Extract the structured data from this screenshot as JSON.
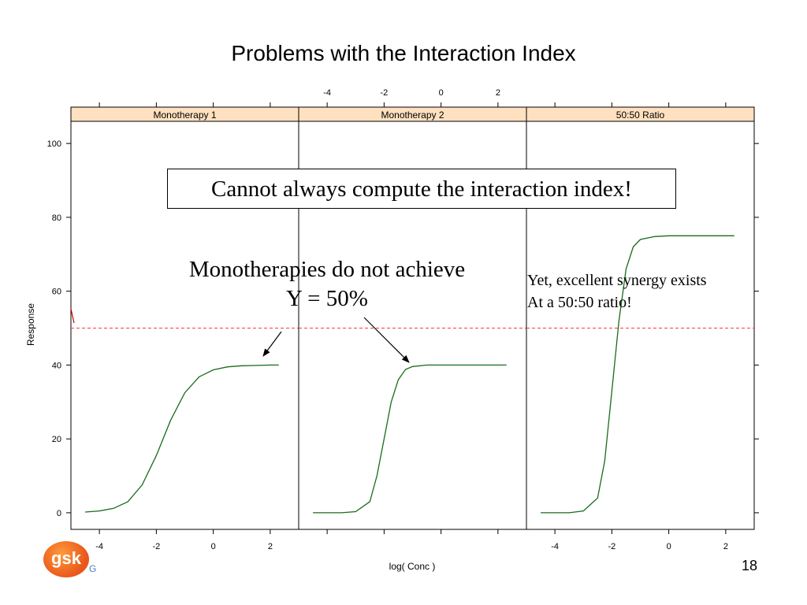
{
  "slide": {
    "title": "Problems with the Interaction Index",
    "page_number": "18",
    "logo_text": "gsk",
    "logo_mark": "G",
    "callout": "Cannot always compute the interaction index!",
    "note_mono_line1": "Monotherapies do not achieve",
    "note_mono_line2": "Y = 50%",
    "note_synergy_line1": "Yet, excellent synergy exists",
    "note_synergy_line2": "At a 50:50 ratio!"
  },
  "chart_data": {
    "type": "line",
    "xlabel": "log( Conc )",
    "ylabel": "Response",
    "xlim": [
      -5,
      3
    ],
    "ylim": [
      -4.5,
      106
    ],
    "x_ticks": [
      -4,
      -2,
      0,
      2
    ],
    "y_ticks": [
      0,
      20,
      40,
      60,
      80,
      100
    ],
    "reference_line": {
      "y": 50,
      "style": "dashed",
      "color": "#ff3b3b"
    },
    "line_color": "#1a6b1a",
    "strip_color": "#ffe0c0",
    "panels": [
      {
        "strip_label": "Monotherapy 1",
        "x": [
          -4.5,
          -4.0,
          -3.5,
          -3.0,
          -2.5,
          -2.0,
          -1.5,
          -1.0,
          -0.5,
          0.0,
          0.5,
          1.0,
          1.5,
          2.0,
          2.3
        ],
        "y": [
          0.2,
          0.5,
          1.2,
          3.0,
          7.5,
          15.5,
          25.0,
          32.5,
          36.8,
          38.7,
          39.5,
          39.8,
          39.9,
          40.0,
          40.0
        ]
      },
      {
        "strip_label": "Monotherapy 2",
        "x": [
          -4.5,
          -3.5,
          -3.0,
          -2.5,
          -2.25,
          -2.0,
          -1.75,
          -1.5,
          -1.25,
          -1.0,
          -0.5,
          0.0,
          1.0,
          2.3
        ],
        "y": [
          0.0,
          0.0,
          0.3,
          3.0,
          10.0,
          20.0,
          30.0,
          36.0,
          38.8,
          39.6,
          40.0,
          40.0,
          40.0,
          40.0
        ]
      },
      {
        "strip_label": "50:50 Ratio",
        "x": [
          -4.5,
          -3.5,
          -3.0,
          -2.5,
          -2.25,
          -2.0,
          -1.75,
          -1.5,
          -1.25,
          -1.0,
          -0.5,
          0.0,
          1.0,
          2.3
        ],
        "y": [
          0.0,
          0.0,
          0.5,
          4.0,
          14.0,
          33.0,
          52.0,
          66.0,
          72.0,
          74.0,
          74.8,
          75.0,
          75.0,
          75.0
        ]
      }
    ]
  }
}
